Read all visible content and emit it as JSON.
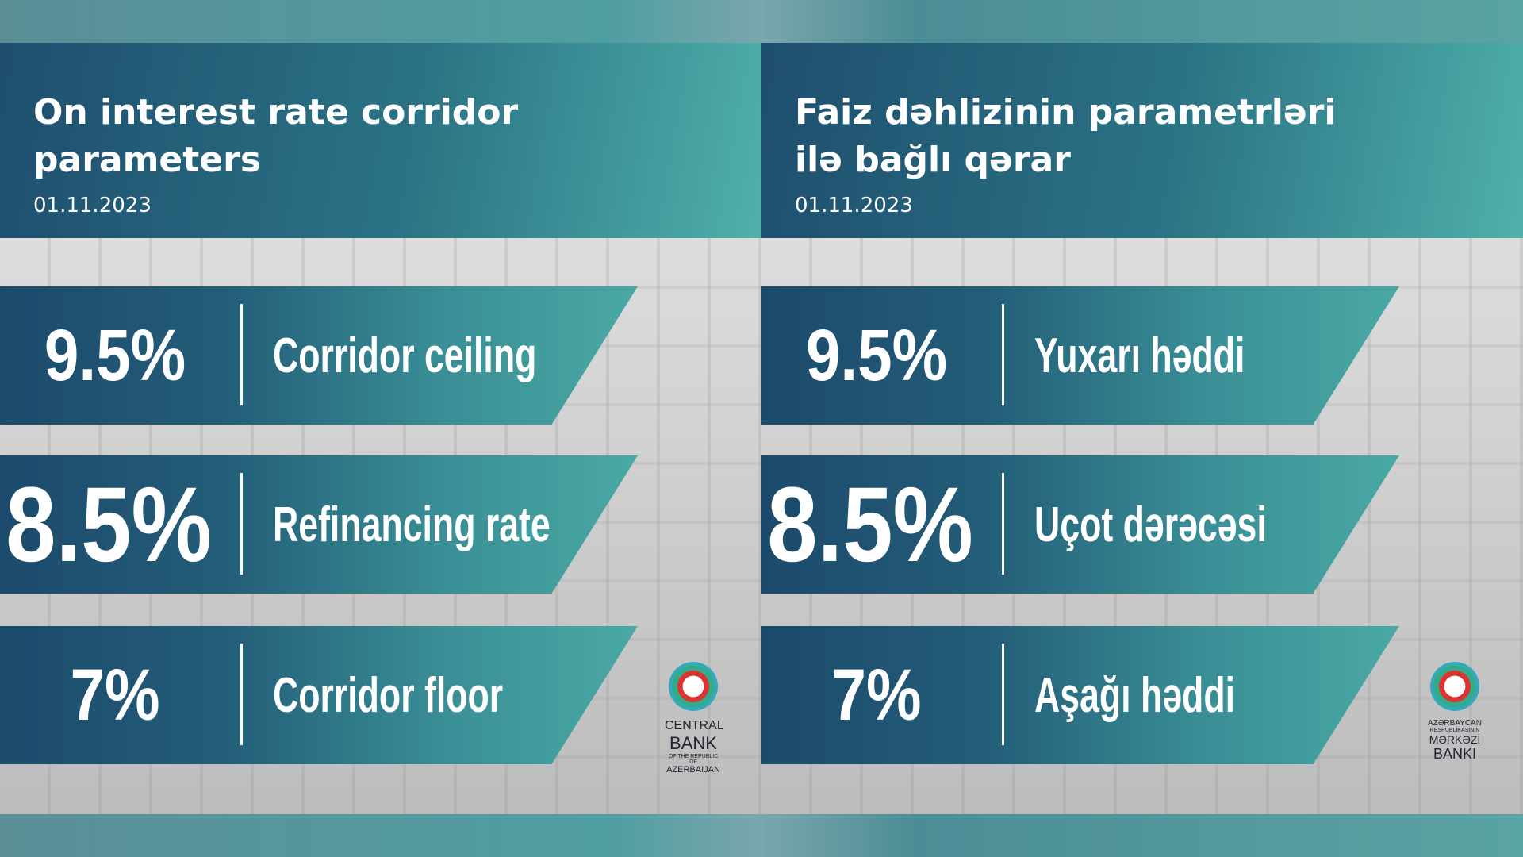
{
  "panels": [
    {
      "title_line1": "On interest rate corridor",
      "title_line2": "parameters",
      "date": "01.11.2023",
      "rows": [
        {
          "value": "9.5%",
          "label": "Corridor ceiling"
        },
        {
          "value": "8.5%",
          "label": "Refinancing rate"
        },
        {
          "value": "7%",
          "label": "Corridor floor"
        }
      ],
      "logo": {
        "l1": "CENTRAL",
        "l2": "BANK",
        "l3": "OF THE REPUBLIC OF",
        "l4": "AZERBAIJAN"
      }
    },
    {
      "title_line1": "Faiz dəhlizinin parametrləri",
      "title_line2": "ilə bağlı qərar",
      "date": "01.11.2023",
      "rows": [
        {
          "value": "9.5%",
          "label": "Yuxarı həddi"
        },
        {
          "value": "8.5%",
          "label": "Uçot dərəcəsi"
        },
        {
          "value": "7%",
          "label": "Aşağı həddi"
        }
      ],
      "logo": {
        "l1": "AZƏRBAYCAN",
        "l2": "RESPUBLİKASININ",
        "l3": "MƏRKƏZİ",
        "l4": "BANKI"
      }
    }
  ]
}
